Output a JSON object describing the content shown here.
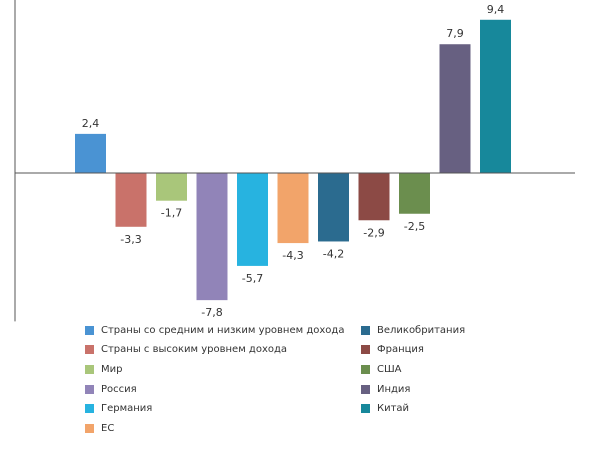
{
  "chart_data": {
    "type": "bar",
    "title": "",
    "xlabel": "",
    "ylabel": "",
    "ylim": [
      -9.1,
      11.0
    ],
    "grid": false,
    "legend_position": "bottom",
    "categories": [
      "Страны со средним и низким уровнем дохода",
      "Страны с высоким уровнем дохода",
      "Мир",
      "Россия",
      "Германия",
      "ЕС",
      "Великобритания",
      "Франция",
      "США",
      "Индия",
      "Китай"
    ],
    "values": [
      2.4,
      -3.3,
      -1.7,
      -7.8,
      -5.7,
      -4.3,
      -4.2,
      -2.9,
      -2.5,
      7.9,
      9.4
    ],
    "value_labels": [
      "2,4",
      "-3,3",
      "-1,7",
      "-7,8",
      "-5,7",
      "-4,3",
      "-4,2",
      "-2,9",
      "-2,5",
      "7,9",
      "9,4"
    ],
    "colors": [
      "#4a93d3",
      "#c9726a",
      "#a9c67a",
      "#9184b8",
      "#27b3e0",
      "#f2a46a",
      "#2b6b8f",
      "#8c4a45",
      "#6b8e4e",
      "#676081",
      "#17889b"
    ]
  }
}
